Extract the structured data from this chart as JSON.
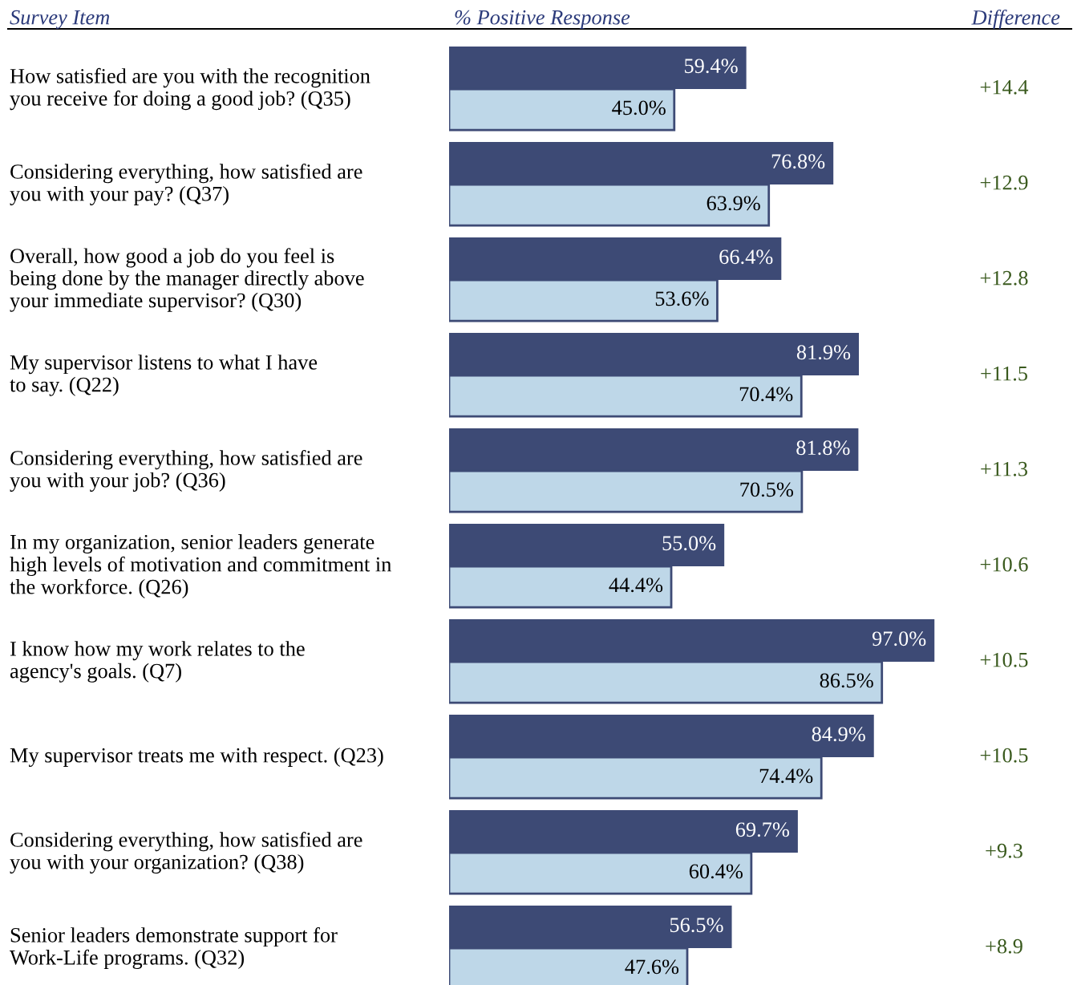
{
  "chart_data": {
    "type": "bar",
    "orientation": "horizontal",
    "tick_labels": "y",
    "xlabel": "% Positive Response",
    "ylabel": "Survey Item",
    "categories": [
      "How satisfied are you with the recognition\nyou receive for doing a good job? (Q35)",
      "Considering everything, how satisfied are\nyou with your pay? (Q37)",
      "Overall, how good a job do you feel is\nbeing done by the manager directly above\nyour immediate supervisor? (Q30)",
      "My supervisor listens to what I have\nto say. (Q22)",
      "Considering everything, how satisfied are\nyou with your job? (Q36)",
      "In my organization, senior leaders generate\nhigh levels of motivation and commitment in\nthe workforce. (Q26)",
      "I know how my work relates to the\nagency's goals. (Q7)",
      "My supervisor treats me with respect. (Q23)",
      "Considering everything, how satisfied are\nyou with your organization? (Q38)",
      "Senior leaders demonstrate support for\nWork-Life programs. (Q32)"
    ],
    "series": [
      {
        "color": "#3d4a75",
        "values": [
          59.4,
          76.8,
          66.4,
          81.9,
          81.8,
          55.0,
          97.0,
          84.9,
          69.7,
          56.5
        ],
        "value_labels": [
          "59.4%",
          "76.8%",
          "66.4%",
          "81.9%",
          "81.8%",
          "55.0%",
          "97.0%",
          "84.9%",
          "69.7%",
          "56.5%"
        ]
      },
      {
        "color": "#bed7e8",
        "values": [
          45.0,
          63.9,
          53.6,
          70.4,
          70.5,
          44.4,
          86.5,
          74.4,
          60.4,
          47.6
        ],
        "value_labels": [
          "45.0%",
          "63.9%",
          "53.6%",
          "70.4%",
          "70.5%",
          "44.4%",
          "86.5%",
          "74.4%",
          "60.4%",
          "47.6%"
        ]
      }
    ],
    "annotations": [
      "Difference",
      "+14.4",
      "+12.9",
      "+12.8",
      "+11.5",
      "+11.3",
      "+10.6",
      "+10.5",
      "+10.5",
      "+9.3",
      "+8.9"
    ]
  }
}
